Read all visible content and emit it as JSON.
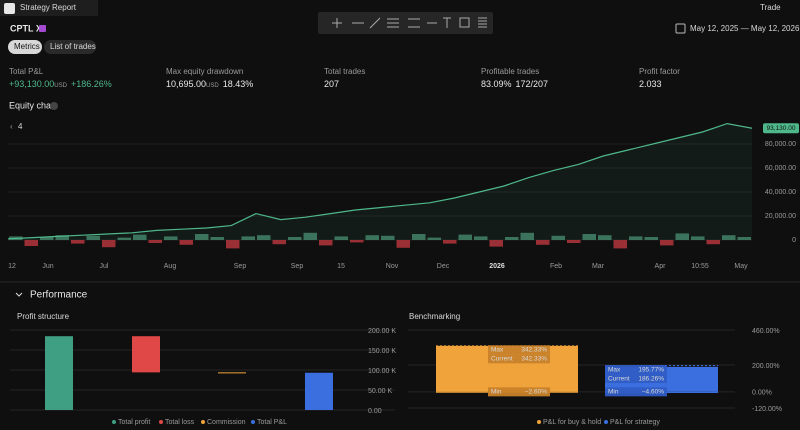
{
  "header": {
    "tab": "Strategy Report",
    "trade": "Trade"
  },
  "symbol": "CPTL XI",
  "date_range": "May 12, 2025 — May 12, 2026",
  "tabs": [
    "Metrics",
    "List of trades"
  ],
  "metrics": [
    {
      "label": "Total P&L",
      "value": "+93,130.00",
      "unit": "USD",
      "extra": "+186.26%"
    },
    {
      "label": "Max equity drawdown",
      "value": "10,695.00",
      "unit": "USD",
      "extra": "18.43%"
    },
    {
      "label": "Total trades",
      "value": "207"
    },
    {
      "label": "Profitable trades",
      "value": "83.09%",
      "extra": "172/207"
    },
    {
      "label": "Profit factor",
      "value": "2.033"
    }
  ],
  "equity_chart": {
    "title": "Equity chart",
    "interval": "4",
    "last_label": "93,130.00",
    "color": "#4fb88b",
    "ylim": [
      -15000,
      100000
    ],
    "yticks": [
      {
        "value": 80000,
        "label": "80,000.00"
      },
      {
        "value": 60000,
        "label": "60,000.00"
      },
      {
        "value": 40000,
        "label": "40,000.00"
      },
      {
        "value": 20000,
        "label": "20,000.00"
      },
      0
    ],
    "equity": [
      1000,
      2000,
      3000,
      4000,
      5000,
      6000,
      8000,
      9000,
      10000,
      12000,
      22000,
      17000,
      19000,
      22000,
      25000,
      27000,
      29000,
      31000,
      35000,
      40000,
      45000,
      52000,
      58000,
      63000,
      70000,
      75000,
      80000,
      85000,
      90000,
      97000,
      93130
    ],
    "trade_pnl": [
      3000,
      -5000,
      2500,
      4000,
      -3000,
      3500,
      -6000,
      2000,
      4500,
      -2500,
      3000,
      -4000,
      5000,
      2500,
      -7000,
      3000,
      4000,
      -3500,
      2500,
      6000,
      -4500,
      3000,
      -2000,
      4000,
      3500,
      -6500,
      5000,
      2000,
      -3000,
      4500,
      3000,
      -5500,
      2500,
      6000,
      -4000,
      3500,
      -2500,
      5000,
      4000,
      -7000,
      3000,
      2500,
      -4500,
      5500,
      3000,
      -3500,
      4000,
      2500
    ],
    "x_labels": [
      "12",
      "Jun",
      "Jul",
      "Aug",
      "Sep",
      "Sep",
      "15",
      "Nov",
      "Dec",
      "2026",
      "Feb",
      "Mar",
      "Apr",
      "10:55",
      "May"
    ]
  },
  "performance": {
    "title": "Performance",
    "profit_structure": {
      "title": "Profit structure",
      "categories": [
        "Total profit",
        "Total loss",
        "Commission",
        "Total P&L"
      ],
      "values": [
        184.5,
        -90.4,
        -1.0,
        93.13
      ],
      "colors": [
        "#3f9f82",
        "#e04848",
        "#f0a33a",
        "#3b6fe0"
      ],
      "ylim": [
        0,
        210
      ],
      "yticks": [
        {
          "value": 200,
          "label": "200.00 K"
        },
        {
          "value": 150,
          "label": "150.00 K"
        },
        {
          "value": 100,
          "label": "100.00 K"
        },
        {
          "value": 50,
          "label": "50.00 K"
        },
        {
          "value": 0,
          "label": "0.00"
        }
      ]
    },
    "benchmarking": {
      "title": "Benchmarking",
      "stat_labels": [
        "Max",
        "Current",
        "Min"
      ],
      "ylim": [
        -150,
        490
      ],
      "yticks": [
        {
          "value": 460,
          "label": "460.00%"
        },
        {
          "value": 200,
          "label": "200.00%"
        },
        {
          "value": 0,
          "label": "0.00%"
        },
        {
          "value": -120,
          "label": "-120.00%"
        }
      ],
      "series": [
        {
          "name": "P&L for buy & hold",
          "color": "#f0a33a",
          "values": [
            342.33,
            342.33,
            -2.6
          ],
          "value_labels": [
            "342.33%",
            "342.33%",
            "−2.60%"
          ]
        },
        {
          "name": "P&L for strategy",
          "color": "#3b6fe0",
          "values": [
            195.77,
            186.26,
            -4.6
          ],
          "value_labels": [
            "195.77%",
            "186.26%",
            "−4.60%"
          ]
        }
      ]
    }
  }
}
